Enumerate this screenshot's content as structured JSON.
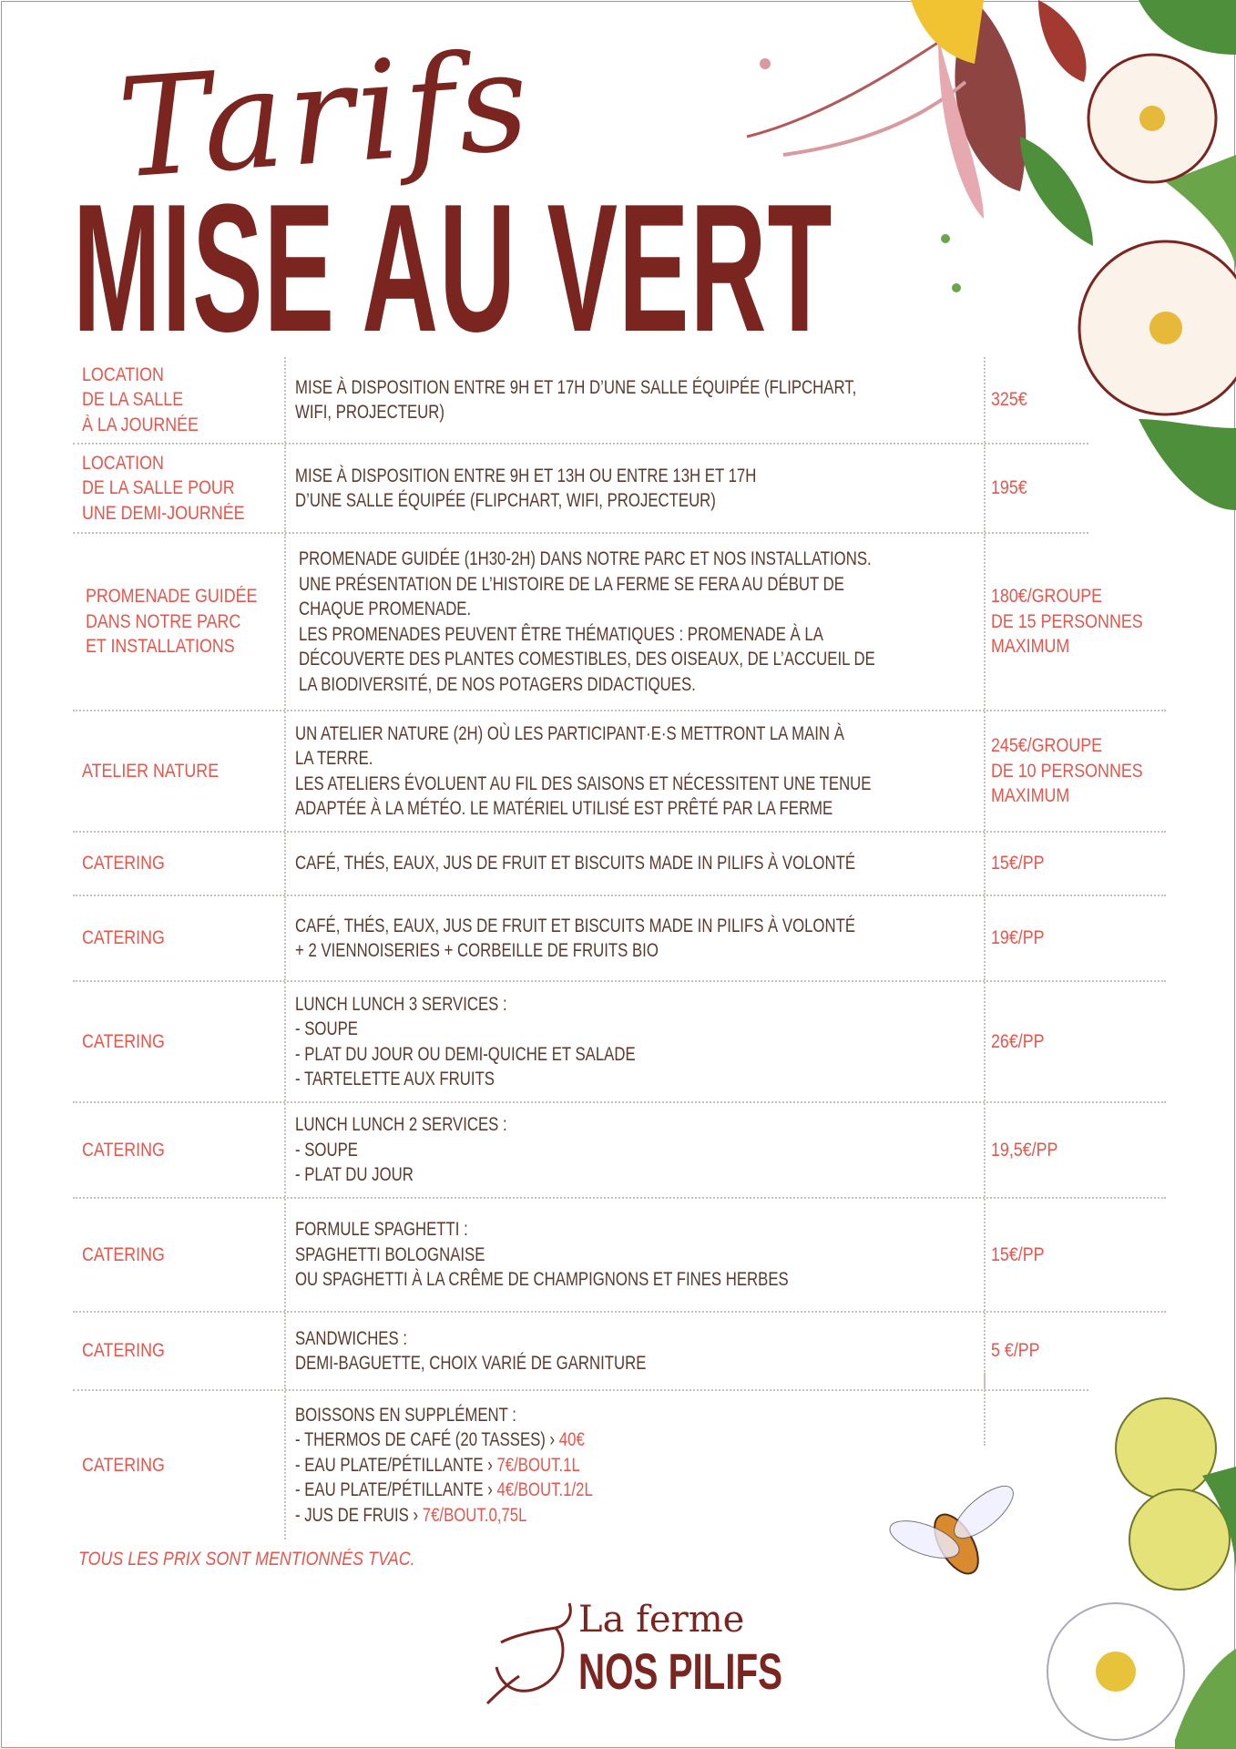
{
  "header": {
    "script_title": "Tarifs",
    "main_title": "MISE AU VERT"
  },
  "rows": [
    {
      "label": [
        "LOCATION",
        "DE LA SALLE",
        "À LA JOURNÉE"
      ],
      "desc": [
        "MISE À DISPOSITION ENTRE 9H ET 17H D’UNE SALLE ÉQUIPÉE (FLIPCHART,",
        "WIFI, PROJECTEUR)"
      ],
      "price": [
        "325€"
      ]
    },
    {
      "label": [
        "LOCATION",
        "DE LA SALLE POUR",
        "UNE DEMI-JOURNÉE"
      ],
      "desc": [
        "MISE À DISPOSITION ENTRE 9H ET 13H OU ENTRE 13H ET 17H",
        "D’UNE SALLE ÉQUIPÉE (FLIPCHART, WIFI, PROJECTEUR)"
      ],
      "price": [
        "195€"
      ]
    },
    {
      "label": [
        "PROMENADE GUIDÉE",
        "DANS NOTRE PARC",
        "ET INSTALLATIONS"
      ],
      "desc": [
        "PROMENADE GUIDÉE (1H30-2H) DANS NOTRE PARC ET NOS INSTALLATIONS.",
        "UNE PRÉSENTATION DE L’HISTOIRE DE LA FERME SE FERA AU DÉBUT DE",
        "CHAQUE PROMENADE.",
        "LES PROMENADES PEUVENT ÊTRE THÉMATIQUES : PROMENADE À LA",
        "DÉCOUVERTE DES PLANTES COMESTIBLES, DES OISEAUX, DE L’ACCUEIL DE",
        "LA BIODIVERSITÉ, DE NOS POTAGERS DIDACTIQUES."
      ],
      "price": [
        "180€/GROUPE",
        "DE 15 PERSONNES",
        "MAXIMUM"
      ]
    },
    {
      "label": [
        "ATELIER NATURE"
      ],
      "desc": [
        "UN ATELIER NATURE (2H) OÙ LES PARTICIPANT·E·S METTRONT LA MAIN À",
        "LA TERRE.",
        "LES ATELIERS ÉVOLUENT AU FIL DES SAISONS ET NÉCESSITENT UNE TENUE",
        "ADAPTÉE À LA MÉTÉO. LE MATÉRIEL UTILISÉ EST PRÊTÉ PAR LA FERME"
      ],
      "price": [
        "245€/GROUPE",
        "DE 10 PERSONNES",
        "MAXIMUM"
      ]
    },
    {
      "label": [
        "CATERING"
      ],
      "desc": [
        "CAFÉ, THÉS, EAUX, JUS DE FRUIT ET BISCUITS MADE IN PILIFS À VOLONTÉ"
      ],
      "price": [
        "15€/PP"
      ]
    },
    {
      "label": [
        "CATERING"
      ],
      "desc": [
        "CAFÉ, THÉS, EAUX, JUS DE FRUIT ET BISCUITS MADE IN PILIFS À VOLONTÉ",
        "+ 2 VIENNOISERIES + CORBEILLE DE FRUITS BIO"
      ],
      "price": [
        "19€/PP"
      ]
    },
    {
      "label": [
        "CATERING"
      ],
      "desc": [
        "LUNCH LUNCH 3 SERVICES :",
        "- SOUPE",
        "- PLAT DU JOUR OU DEMI-QUICHE ET SALADE",
        "- TARTELETTE AUX FRUITS"
      ],
      "price": [
        "26€/PP"
      ]
    },
    {
      "label": [
        "CATERING"
      ],
      "desc": [
        "LUNCH LUNCH 2 SERVICES :",
        "- SOUPE",
        "- PLAT DU JOUR"
      ],
      "price": [
        "19,5€/PP"
      ]
    },
    {
      "label": [
        "CATERING"
      ],
      "desc": [
        "FORMULE SPAGHETTI :",
        "SPAGHETTI BOLOGNAISE",
        "OU SPAGHETTI À LA CRÊME DE CHAMPIGNONS ET FINES HERBES"
      ],
      "price": [
        "15€/PP"
      ]
    },
    {
      "label": [
        "CATERING"
      ],
      "desc": [
        "SANDWICHES :",
        "DEMI-BAGUETTE, CHOIX VARIÉ DE GARNITURE"
      ],
      "price": [
        "5 €/PP"
      ]
    },
    {
      "label": [
        "CATERING"
      ],
      "desc_title": "BOISSONS EN SUPPLÉMENT :",
      "drinks": [
        {
          "item": "- THERMOS DE CAFÉ (20 TASSES)  › ",
          "price": "40€"
        },
        {
          "item": "- EAU PLATE/PÉTILLANTE  › ",
          "price": "7€/BOUT.1L"
        },
        {
          "item": "- EAU PLATE/PÉTILLANTE  › ",
          "price": "4€/BOUT.1/2L"
        },
        {
          "item": "- JUS DE FRUIS › ",
          "price": "7€/BOUT.0,75L"
        }
      ]
    }
  ],
  "footer": {
    "note": "TOUS LES PRIX SONT MENTIONNÉS TVAC.",
    "logo_line1": "La ferme",
    "logo_line2": "NOS PILIFS"
  },
  "colors": {
    "title": "#7a2520",
    "label": "#e4574d",
    "text": "#5a3a2e"
  }
}
